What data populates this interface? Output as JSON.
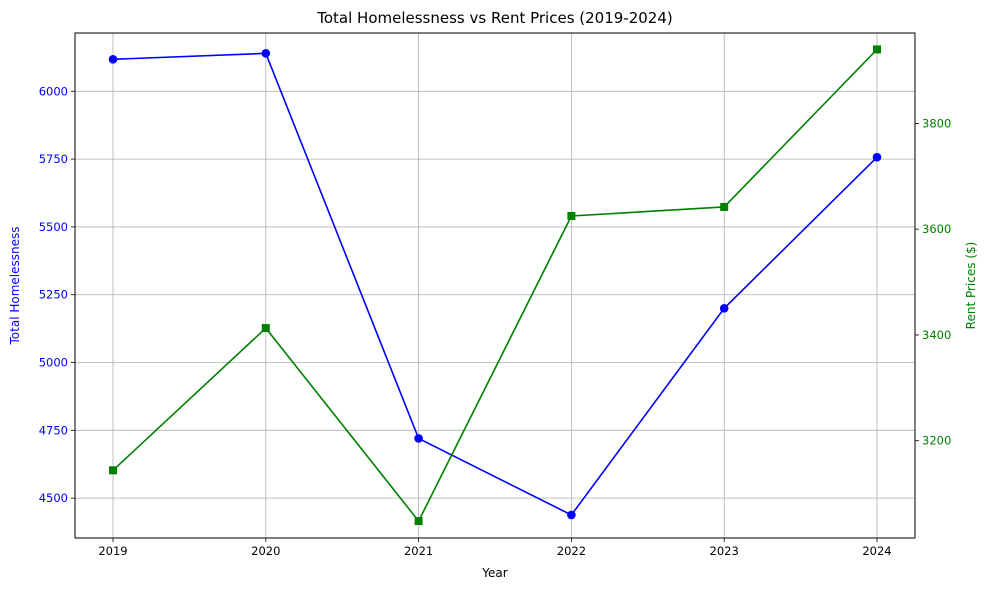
{
  "chart_data": {
    "type": "line",
    "title": "Total Homelessness vs Rent Prices (2019-2024)",
    "xlabel": "Year",
    "categories": [
      "2019",
      "2020",
      "2021",
      "2022",
      "2023",
      "2024"
    ],
    "grid": true,
    "series": [
      {
        "name": "Total Homelessness",
        "axis": "left",
        "color": "#0000ff",
        "marker": "circle",
        "values": [
          6118,
          6140,
          4720,
          4438,
          5200,
          5757
        ]
      },
      {
        "name": "Rent Prices ($)",
        "axis": "right",
        "color": "#008000",
        "marker": "square",
        "values": [
          3144,
          3413,
          3048,
          3625,
          3642,
          3940
        ]
      }
    ],
    "y_left": {
      "label": "Total Homelessness",
      "color": "#0000ff",
      "ticks": [
        4500,
        4750,
        5000,
        5250,
        5500,
        5750,
        6000
      ],
      "ylim": [
        4353,
        6215
      ]
    },
    "y_right": {
      "label": "Rent Prices ($)",
      "color": "#008000",
      "ticks": [
        3200,
        3400,
        3600,
        3800
      ],
      "ylim": [
        3016,
        3971
      ]
    }
  }
}
